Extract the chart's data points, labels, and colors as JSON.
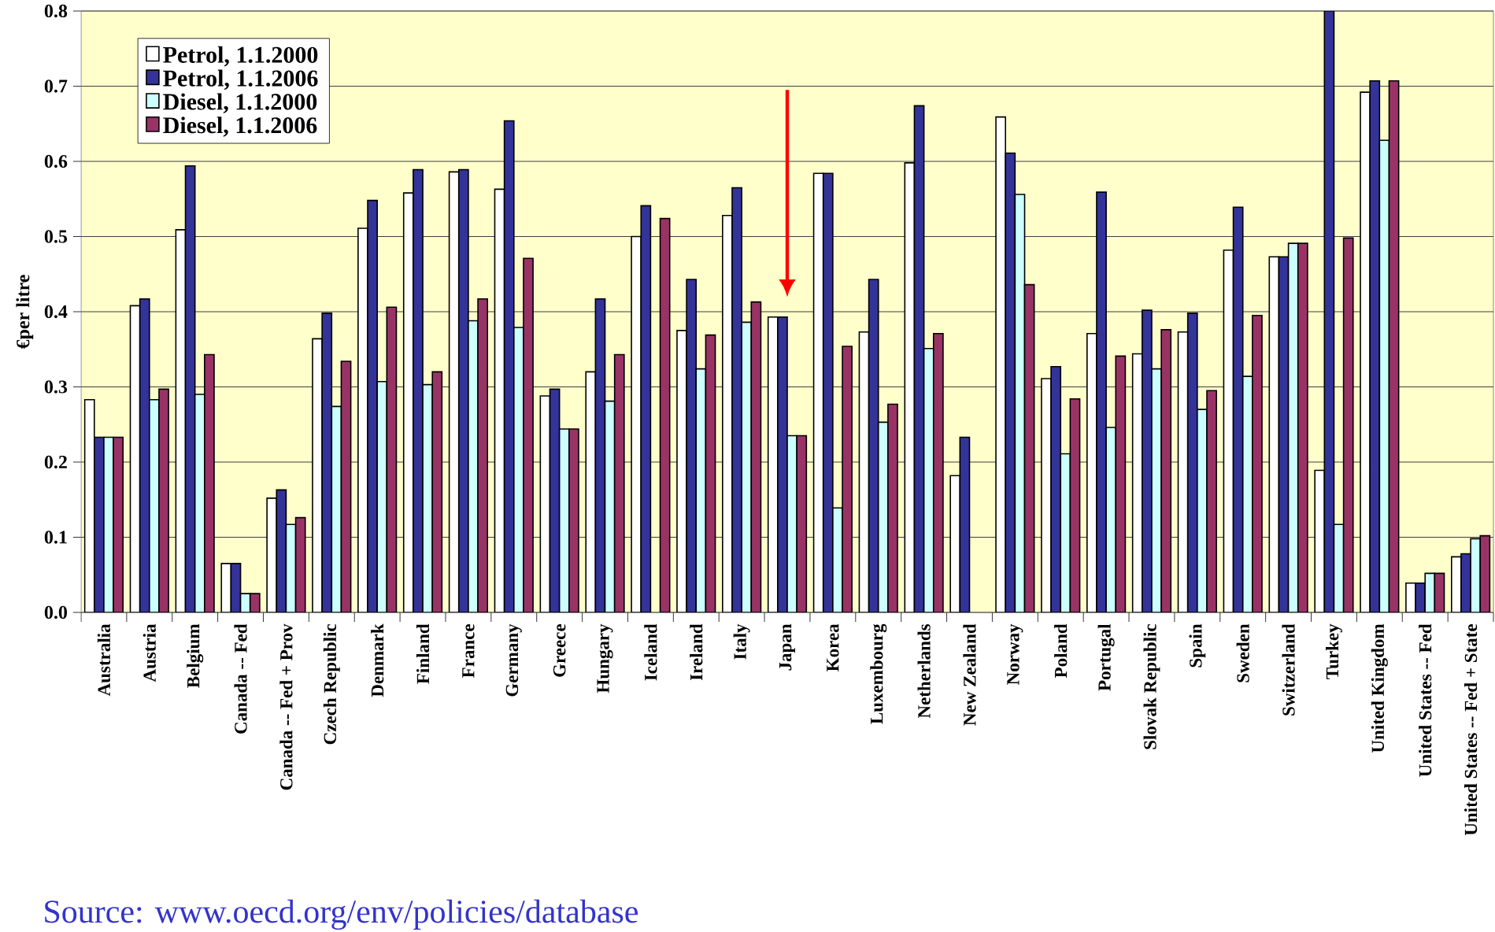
{
  "chart_data": {
    "type": "bar",
    "ylabel": "€per litre",
    "categories": [
      "Australia",
      "Austria",
      "Belgium",
      "Canada -- Fed",
      "Canada -- Fed + Prov",
      "Czech Republic",
      "Denmark",
      "Finland",
      "France",
      "Germany",
      "Greece",
      "Hungary",
      "Iceland",
      "Ireland",
      "Italy",
      "Japan",
      "Korea",
      "Luxembourg",
      "Netherlands",
      "New Zealand",
      "Norway",
      "Poland",
      "Portugal",
      "Slovak Republic",
      "Spain",
      "Sweden",
      "Switzerland",
      "Turkey",
      "United Kingdom",
      "United States -- Fed",
      "United States -- Fed + State"
    ],
    "series": [
      {
        "name": "Petrol, 1.1.2000",
        "color": "#ffffff",
        "values": [
          0.283,
          0.408,
          0.509,
          0.065,
          0.152,
          0.364,
          0.511,
          0.558,
          0.586,
          0.563,
          0.288,
          0.32,
          0.5,
          0.375,
          0.528,
          0.393,
          0.584,
          0.373,
          0.598,
          0.182,
          0.659,
          0.311,
          0.371,
          0.344,
          0.373,
          0.482,
          0.473,
          0.189,
          0.692,
          0.039,
          0.074
        ]
      },
      {
        "name": "Petrol, 1.1.2006",
        "color": "#333399",
        "values": [
          0.233,
          0.417,
          0.594,
          0.065,
          0.163,
          0.398,
          0.548,
          0.589,
          0.589,
          0.654,
          0.297,
          0.417,
          0.541,
          0.443,
          0.565,
          0.393,
          0.584,
          0.443,
          0.674,
          0.233,
          0.611,
          0.327,
          0.559,
          0.402,
          0.398,
          0.539,
          0.473,
          0.8,
          0.707,
          0.039,
          0.078
        ]
      },
      {
        "name": "Diesel, 1.1.2000",
        "color": "#ccffff",
        "values": [
          0.233,
          0.283,
          0.29,
          0.025,
          0.117,
          0.274,
          0.307,
          0.303,
          0.388,
          0.379,
          0.244,
          0.281,
          null,
          0.324,
          0.386,
          0.235,
          0.139,
          0.253,
          0.351,
          null,
          0.556,
          0.211,
          0.246,
          0.324,
          0.27,
          0.314,
          0.491,
          0.117,
          0.628,
          0.052,
          0.098
        ]
      },
      {
        "name": "Diesel, 1.1.2006",
        "color": "#993366",
        "values": [
          0.233,
          0.297,
          0.343,
          0.025,
          0.126,
          0.334,
          0.406,
          0.32,
          0.417,
          0.471,
          0.244,
          0.343,
          0.524,
          0.369,
          0.413,
          0.235,
          0.354,
          0.277,
          0.371,
          null,
          0.436,
          0.284,
          0.341,
          0.376,
          0.295,
          0.395,
          0.491,
          0.498,
          0.707,
          0.052,
          0.102
        ]
      }
    ],
    "ylim": [
      0,
      0.8
    ],
    "yticks": [
      {
        "value": 0,
        "label": "0.0"
      },
      0.1,
      0.2,
      0.3,
      0.4,
      0.5,
      0.6,
      0.7,
      0.8
    ],
    "grid": "y",
    "legend": "top left",
    "annotations": [
      "Source: www.oecd.org/env/policies/database"
    ]
  }
}
